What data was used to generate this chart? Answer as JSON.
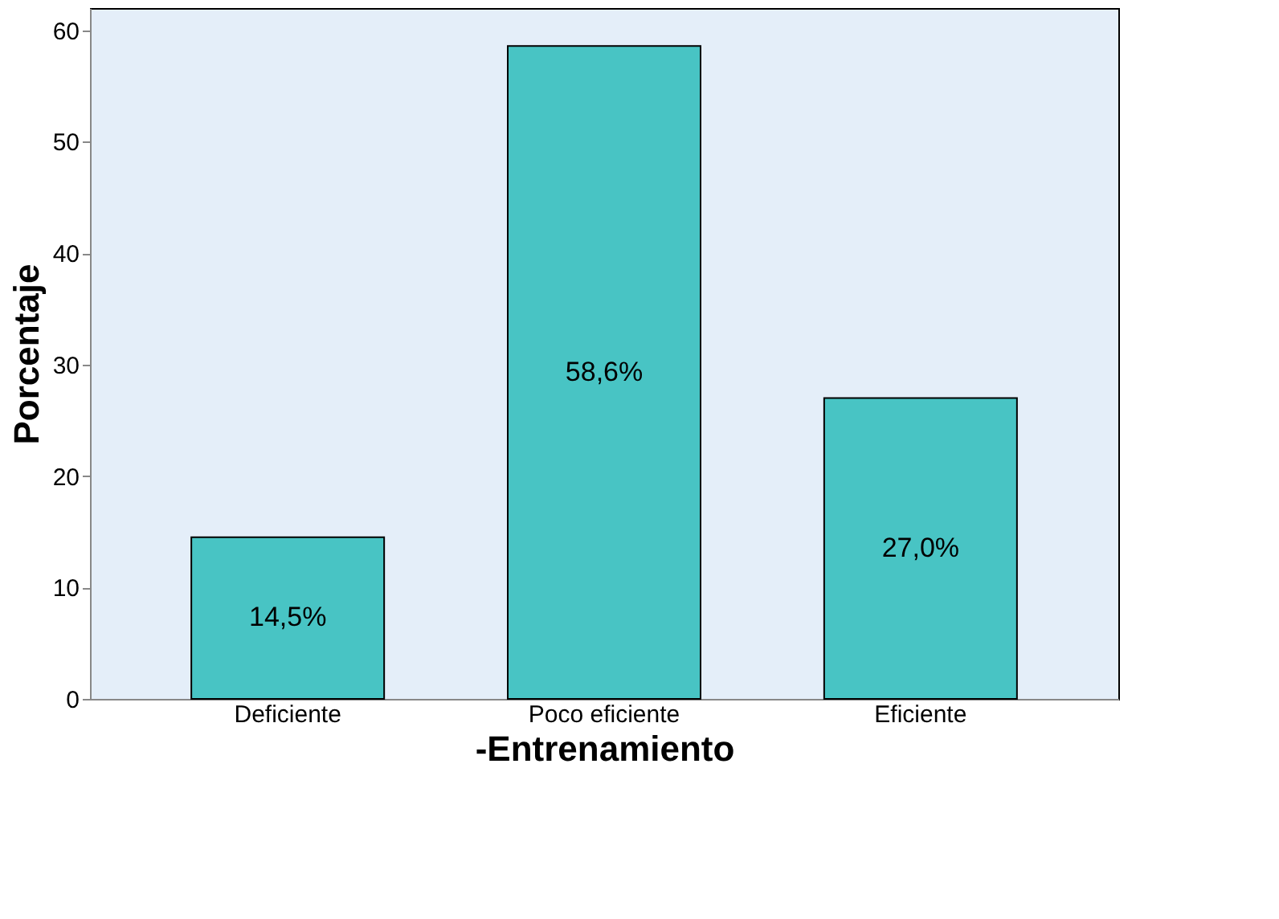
{
  "chart_data": {
    "type": "bar",
    "xlabel": "-Entrenamiento",
    "ylabel": "Porcentaje",
    "categories": [
      "Deficiente",
      "Poco eficiente",
      "Eficiente"
    ],
    "values": [
      14.5,
      58.6,
      27.0
    ],
    "value_labels": [
      "14,5%",
      "58,6%",
      "27,0%"
    ],
    "color": "#48c4c4",
    "ylim": [
      0,
      62
    ],
    "yticks": [
      0,
      10,
      20,
      30,
      40,
      50,
      60
    ],
    "grid": false
  }
}
